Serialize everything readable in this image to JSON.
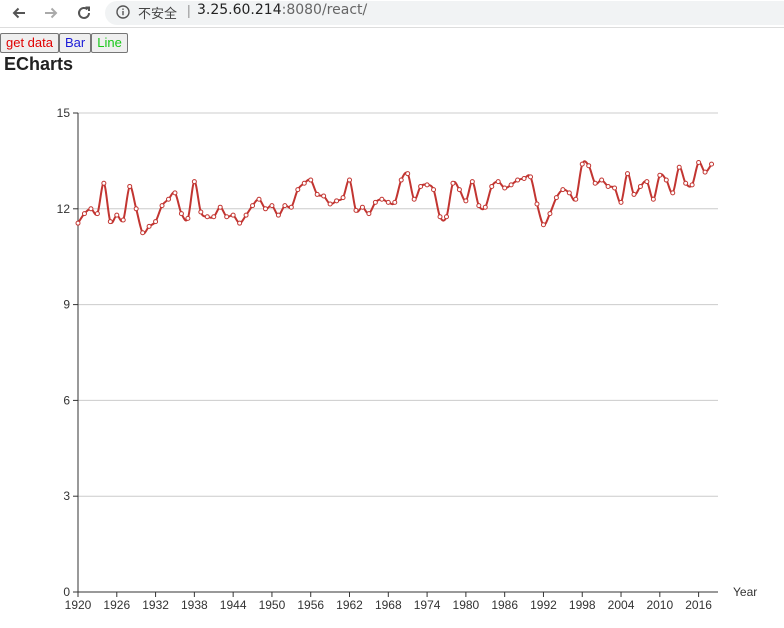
{
  "browser": {
    "security_label": "不安全",
    "url_host": "3.25.60.214",
    "url_rest": ":8080/react/"
  },
  "buttons": {
    "get_data": "get data",
    "bar": "Bar",
    "line": "Line",
    "get_data_color": "#e00000",
    "bar_color": "#1a1ad8",
    "line_color": "#18c818"
  },
  "page": {
    "title": "ECharts"
  },
  "chart_data": {
    "type": "line",
    "xlabel": "Year",
    "ylabel": "",
    "ylim": [
      0,
      15
    ],
    "yticks": [
      0,
      3,
      6,
      9,
      12,
      15
    ],
    "xlim": [
      1920,
      2019
    ],
    "xticks": [
      1920,
      1926,
      1932,
      1938,
      1944,
      1950,
      1956,
      1962,
      1968,
      1974,
      1980,
      1986,
      1992,
      1998,
      2004,
      2010,
      2016
    ],
    "grid": true,
    "line_color": "#c23531",
    "x": [
      1920,
      1921,
      1922,
      1923,
      1924,
      1925,
      1926,
      1927,
      1928,
      1929,
      1930,
      1931,
      1932,
      1933,
      1934,
      1935,
      1936,
      1937,
      1938,
      1939,
      1940,
      1941,
      1942,
      1943,
      1944,
      1945,
      1946,
      1947,
      1948,
      1949,
      1950,
      1951,
      1952,
      1953,
      1954,
      1955,
      1956,
      1957,
      1958,
      1959,
      1960,
      1961,
      1962,
      1963,
      1964,
      1965,
      1966,
      1967,
      1968,
      1969,
      1970,
      1971,
      1972,
      1973,
      1974,
      1975,
      1976,
      1977,
      1978,
      1979,
      1980,
      1981,
      1982,
      1983,
      1984,
      1985,
      1986,
      1987,
      1988,
      1989,
      1990,
      1991,
      1992,
      1993,
      1994,
      1995,
      1996,
      1997,
      1998,
      1999,
      2000,
      2001,
      2002,
      2003,
      2004,
      2005,
      2006,
      2007,
      2008,
      2009,
      2010,
      2011,
      2012,
      2013,
      2014,
      2015,
      2016,
      2017,
      2018
    ],
    "values": [
      11.55,
      11.85,
      12.0,
      11.85,
      12.8,
      11.6,
      11.8,
      11.65,
      12.7,
      12.0,
      11.25,
      11.45,
      11.6,
      12.1,
      12.3,
      12.5,
      11.85,
      11.7,
      12.85,
      11.9,
      11.75,
      11.75,
      12.05,
      11.75,
      11.8,
      11.55,
      11.8,
      12.1,
      12.3,
      12.0,
      12.1,
      11.8,
      12.1,
      12.05,
      12.6,
      12.8,
      12.9,
      12.45,
      12.4,
      12.15,
      12.25,
      12.35,
      12.9,
      11.95,
      12.05,
      11.85,
      12.2,
      12.3,
      12.2,
      12.2,
      12.9,
      13.1,
      12.3,
      12.7,
      12.75,
      12.6,
      11.75,
      11.75,
      12.8,
      12.6,
      12.25,
      12.85,
      12.1,
      12.05,
      12.7,
      12.85,
      12.65,
      12.75,
      12.9,
      12.95,
      13.0,
      12.15,
      11.5,
      11.85,
      12.35,
      12.6,
      12.5,
      12.3,
      13.4,
      13.35,
      12.8,
      12.9,
      12.7,
      12.65,
      12.2,
      13.1,
      12.45,
      12.7,
      12.85,
      12.3,
      13.05,
      12.9,
      12.5,
      13.3,
      12.8,
      12.75,
      13.45,
      13.15,
      13.4
    ]
  }
}
